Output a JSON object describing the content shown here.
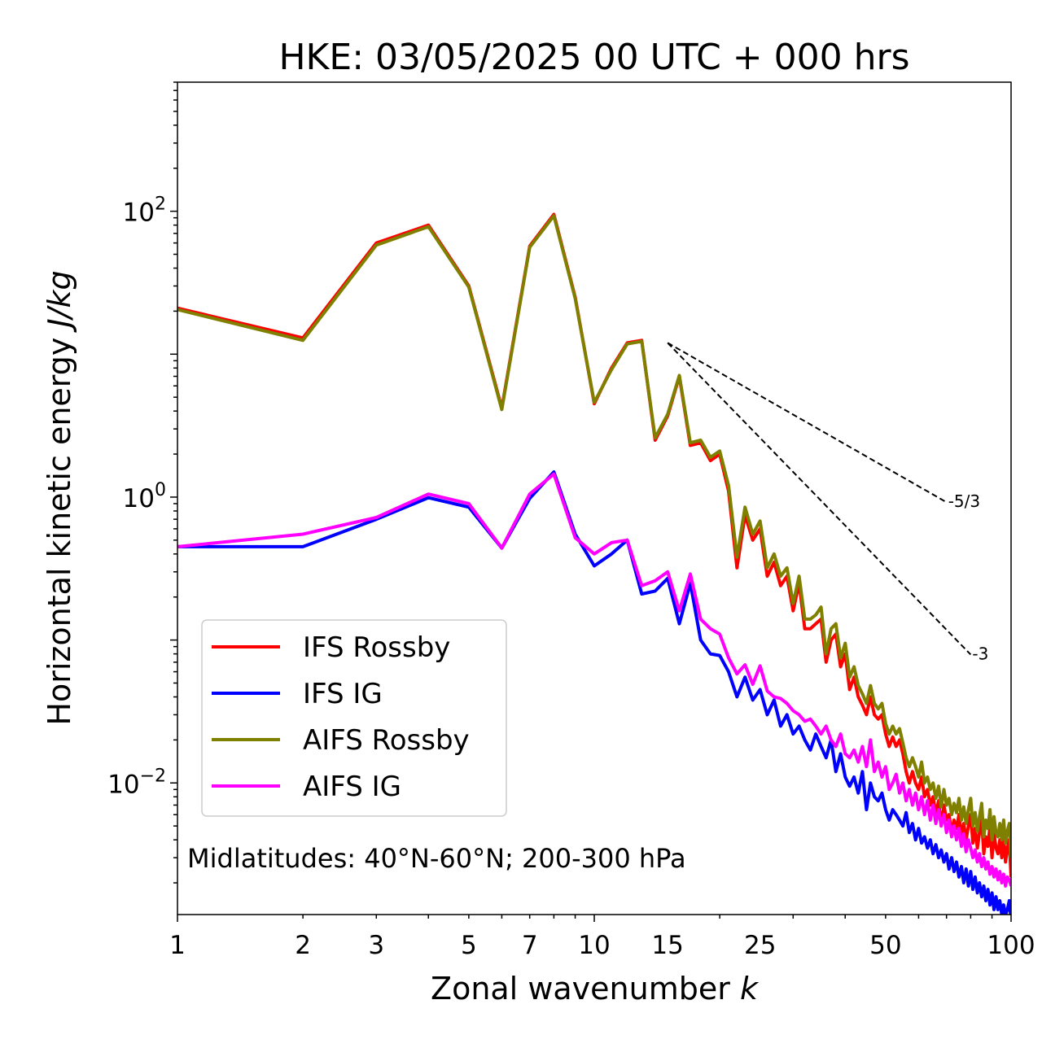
{
  "chart_data": {
    "type": "line",
    "title": "HKE: 03/05/2025 00 UTC + 000 hrs",
    "xlabel": "Zonal wavenumber k",
    "ylabel": "Horizontal kinetic energy J/kg",
    "xscale": "log",
    "yscale": "log",
    "xlim": [
      1,
      100
    ],
    "ylim": [
      0.0012,
      800
    ],
    "x_ticks": [
      1,
      2,
      3,
      5,
      7,
      10,
      15,
      25,
      50,
      100
    ],
    "x_tick_labels": [
      "1",
      "2",
      "3",
      "5",
      "7",
      "10",
      "15",
      "25",
      "50",
      "100"
    ],
    "y_ticks": [
      0.01,
      1,
      100
    ],
    "y_tick_labels": [
      {
        "base": "10",
        "exp": "−2"
      },
      {
        "base": "10",
        "exp": "0"
      },
      {
        "base": "10",
        "exp": "2"
      }
    ],
    "grid": false,
    "legend_position": "lower-left",
    "annotation": "Midlatitudes: 40°N-60°N; 200-300 hPa",
    "reference_lines": [
      {
        "label": "-5/3",
        "slope": -1.6667,
        "x": [
          15,
          70
        ],
        "y_start": 12.0
      },
      {
        "label": "-3",
        "slope": -3,
        "x": [
          15,
          80
        ],
        "y_start": 12.0
      }
    ],
    "x": [
      1,
      2,
      3,
      4,
      5,
      6,
      7,
      8,
      9,
      10,
      11,
      12,
      13,
      14,
      15,
      16,
      17,
      18,
      19,
      20,
      21,
      22,
      23,
      24,
      25,
      26,
      27,
      28,
      29,
      30,
      31,
      32,
      33,
      34,
      35,
      36,
      37,
      38,
      39,
      40,
      41,
      42,
      43,
      44,
      45,
      46,
      47,
      48,
      49,
      50,
      51,
      52,
      53,
      54,
      55,
      56,
      57,
      58,
      59,
      60,
      61,
      62,
      63,
      64,
      65,
      66,
      67,
      68,
      69,
      70,
      71,
      72,
      73,
      74,
      75,
      76,
      77,
      78,
      79,
      80,
      81,
      82,
      83,
      84,
      85,
      86,
      87,
      88,
      89,
      90,
      91,
      92,
      93,
      94,
      95,
      96,
      97,
      98,
      99,
      100
    ],
    "series": [
      {
        "name": "IFS Rossby",
        "color": "#ff0000",
        "values": [
          21,
          13,
          60,
          80,
          30,
          4.2,
          57,
          95,
          25,
          4.5,
          8,
          12,
          12.5,
          2.5,
          3.7,
          7,
          2.3,
          2.4,
          1.8,
          2,
          1.1,
          0.32,
          0.75,
          0.5,
          0.6,
          0.28,
          0.35,
          0.24,
          0.28,
          0.16,
          0.25,
          0.12,
          0.12,
          0.13,
          0.14,
          0.07,
          0.1,
          0.11,
          0.065,
          0.08,
          0.045,
          0.055,
          0.04,
          0.035,
          0.03,
          0.04,
          0.03,
          0.028,
          0.03,
          0.022,
          0.018,
          0.021,
          0.018,
          0.02,
          0.016,
          0.012,
          0.01,
          0.012,
          0.01,
          0.009,
          0.011,
          0.008,
          0.009,
          0.007,
          0.008,
          0.006,
          0.0075,
          0.005,
          0.007,
          0.0055,
          0.006,
          0.0045,
          0.0055,
          0.0048,
          0.006,
          0.0042,
          0.0052,
          0.004,
          0.005,
          0.006,
          0.0038,
          0.0048,
          0.0035,
          0.0045,
          0.0055,
          0.0032,
          0.0042,
          0.0036,
          0.005,
          0.003,
          0.0045,
          0.0035,
          0.0032,
          0.004,
          0.003,
          0.0042,
          0.0028,
          0.0035,
          0.004,
          0.0022
        ]
      },
      {
        "name": "IFS IG",
        "color": "#0000ff",
        "values": [
          0.45,
          0.45,
          0.7,
          0.99,
          0.85,
          0.44,
          0.98,
          1.5,
          0.55,
          0.33,
          0.4,
          0.5,
          0.21,
          0.22,
          0.27,
          0.13,
          0.25,
          0.1,
          0.08,
          0.078,
          0.06,
          0.04,
          0.055,
          0.038,
          0.045,
          0.03,
          0.038,
          0.025,
          0.03,
          0.022,
          0.025,
          0.02,
          0.017,
          0.022,
          0.018,
          0.015,
          0.02,
          0.012,
          0.016,
          0.011,
          0.0095,
          0.011,
          0.0085,
          0.012,
          0.0065,
          0.01,
          0.008,
          0.0075,
          0.0085,
          0.0065,
          0.0055,
          0.0065,
          0.006,
          0.0055,
          0.005,
          0.0062,
          0.0045,
          0.0052,
          0.004,
          0.0048,
          0.0038,
          0.0042,
          0.0035,
          0.004,
          0.0032,
          0.0037,
          0.003,
          0.0034,
          0.0028,
          0.0032,
          0.0025,
          0.003,
          0.0024,
          0.0028,
          0.0022,
          0.0026,
          0.002,
          0.0025,
          0.0019,
          0.0024,
          0.0018,
          0.0022,
          0.0017,
          0.002,
          0.0016,
          0.0019,
          0.0015,
          0.0018,
          0.0014,
          0.0017,
          0.0013,
          0.0016,
          0.0013,
          0.0015,
          0.0012,
          0.0014,
          0.0012,
          0.0013,
          0.0015,
          0.0011
        ]
      },
      {
        "name": "AIFS Rossby",
        "color": "#808000",
        "values": [
          20.5,
          12.5,
          58,
          78,
          29.5,
          4.1,
          56,
          93,
          24.5,
          4.6,
          7.8,
          11.8,
          12.3,
          2.6,
          3.8,
          7.1,
          2.4,
          2.5,
          1.9,
          2.1,
          1.2,
          0.38,
          0.85,
          0.55,
          0.68,
          0.32,
          0.4,
          0.28,
          0.32,
          0.18,
          0.28,
          0.14,
          0.14,
          0.15,
          0.17,
          0.08,
          0.12,
          0.13,
          0.075,
          0.095,
          0.055,
          0.065,
          0.048,
          0.042,
          0.036,
          0.048,
          0.036,
          0.033,
          0.036,
          0.026,
          0.022,
          0.025,
          0.022,
          0.024,
          0.019,
          0.015,
          0.013,
          0.015,
          0.013,
          0.011,
          0.014,
          0.01,
          0.011,
          0.009,
          0.01,
          0.0078,
          0.0095,
          0.0068,
          0.009,
          0.007,
          0.0078,
          0.006,
          0.0072,
          0.0062,
          0.0078,
          0.0055,
          0.0068,
          0.0052,
          0.0065,
          0.0078,
          0.005,
          0.0062,
          0.0046,
          0.0058,
          0.0072,
          0.0042,
          0.0055,
          0.0048,
          0.0065,
          0.004,
          0.0058,
          0.0045,
          0.0042,
          0.0052,
          0.004,
          0.0055,
          0.0038,
          0.0046,
          0.0052,
          0.003
        ]
      },
      {
        "name": "AIFS IG",
        "color": "#ff00ff",
        "values": [
          0.45,
          0.55,
          0.72,
          1.05,
          0.9,
          0.44,
          1.05,
          1.45,
          0.52,
          0.4,
          0.48,
          0.5,
          0.24,
          0.26,
          0.3,
          0.16,
          0.29,
          0.14,
          0.12,
          0.11,
          0.075,
          0.058,
          0.067,
          0.049,
          0.066,
          0.044,
          0.04,
          0.039,
          0.036,
          0.032,
          0.03,
          0.027,
          0.028,
          0.025,
          0.022,
          0.025,
          0.02,
          0.018,
          0.022,
          0.016,
          0.015,
          0.017,
          0.014,
          0.018,
          0.013,
          0.02,
          0.012,
          0.014,
          0.011,
          0.013,
          0.009,
          0.01,
          0.0115,
          0.0085,
          0.01,
          0.0075,
          0.009,
          0.007,
          0.0085,
          0.0065,
          0.008,
          0.006,
          0.0075,
          0.0055,
          0.007,
          0.0052,
          0.0065,
          0.005,
          0.006,
          0.0045,
          0.0055,
          0.0042,
          0.005,
          0.004,
          0.0048,
          0.0036,
          0.0044,
          0.0033,
          0.004,
          0.0035,
          0.003,
          0.0034,
          0.0028,
          0.0032,
          0.0026,
          0.003,
          0.0025,
          0.0028,
          0.0023,
          0.0026,
          0.0022,
          0.0025,
          0.0021,
          0.0024,
          0.002,
          0.0023,
          0.0019,
          0.0022,
          0.0021,
          0.0019
        ]
      }
    ]
  }
}
